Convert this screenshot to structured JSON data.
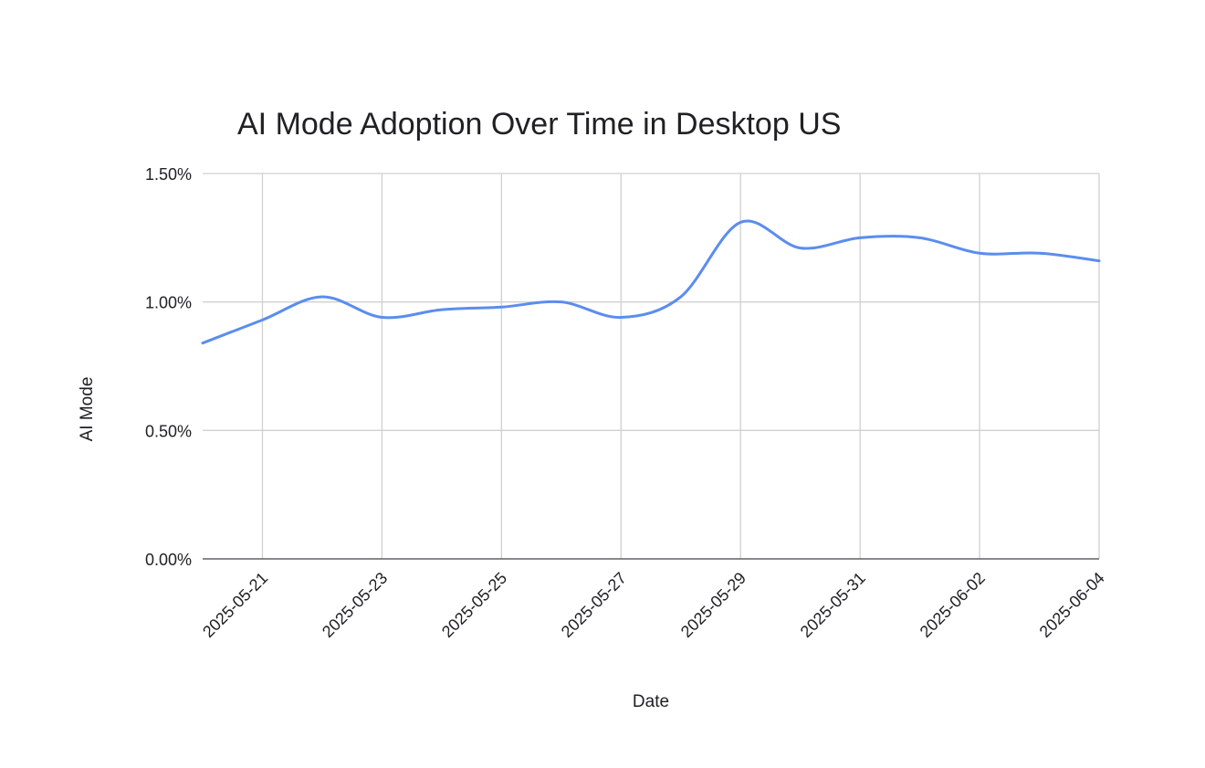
{
  "chart_data": {
    "type": "line",
    "title": "AI Mode Adoption Over Time in Desktop US",
    "xlabel": "Date",
    "ylabel": "AI Mode",
    "ylim": [
      0,
      0.015
    ],
    "y_ticks": [
      0,
      0.005,
      0.01,
      0.015
    ],
    "y_tick_labels": [
      "0.00%",
      "0.50%",
      "1.00%",
      "1.50%"
    ],
    "x_range": [
      "2025-05-20",
      "2025-06-04"
    ],
    "x_tick_labels": [
      "2025-05-21",
      "2025-05-23",
      "2025-05-25",
      "2025-05-27",
      "2025-05-29",
      "2025-05-31",
      "2025-06-02",
      "2025-06-04"
    ],
    "grid": true,
    "legend": "none",
    "series": [
      {
        "color": "#5b8def",
        "points": [
          {
            "x": "2025-05-20",
            "y": 0.0084
          },
          {
            "x": "2025-05-21",
            "y": 0.0093
          },
          {
            "x": "2025-05-22",
            "y": 0.0102
          },
          {
            "x": "2025-05-23",
            "y": 0.0094
          },
          {
            "x": "2025-05-24",
            "y": 0.0097
          },
          {
            "x": "2025-05-25",
            "y": 0.0098
          },
          {
            "x": "2025-05-26",
            "y": 0.01
          },
          {
            "x": "2025-05-27",
            "y": 0.0094
          },
          {
            "x": "2025-05-28",
            "y": 0.0102
          },
          {
            "x": "2025-05-29",
            "y": 0.0131
          },
          {
            "x": "2025-05-30",
            "y": 0.0121
          },
          {
            "x": "2025-05-31",
            "y": 0.0125
          },
          {
            "x": "2025-06-01",
            "y": 0.0125
          },
          {
            "x": "2025-06-02",
            "y": 0.0119
          },
          {
            "x": "2025-06-03",
            "y": 0.0119
          },
          {
            "x": "2025-06-04",
            "y": 0.0116
          }
        ]
      }
    ],
    "colors": {
      "grid": "#d0d0d0",
      "axis": "#5f6368",
      "text": "#202124"
    }
  }
}
